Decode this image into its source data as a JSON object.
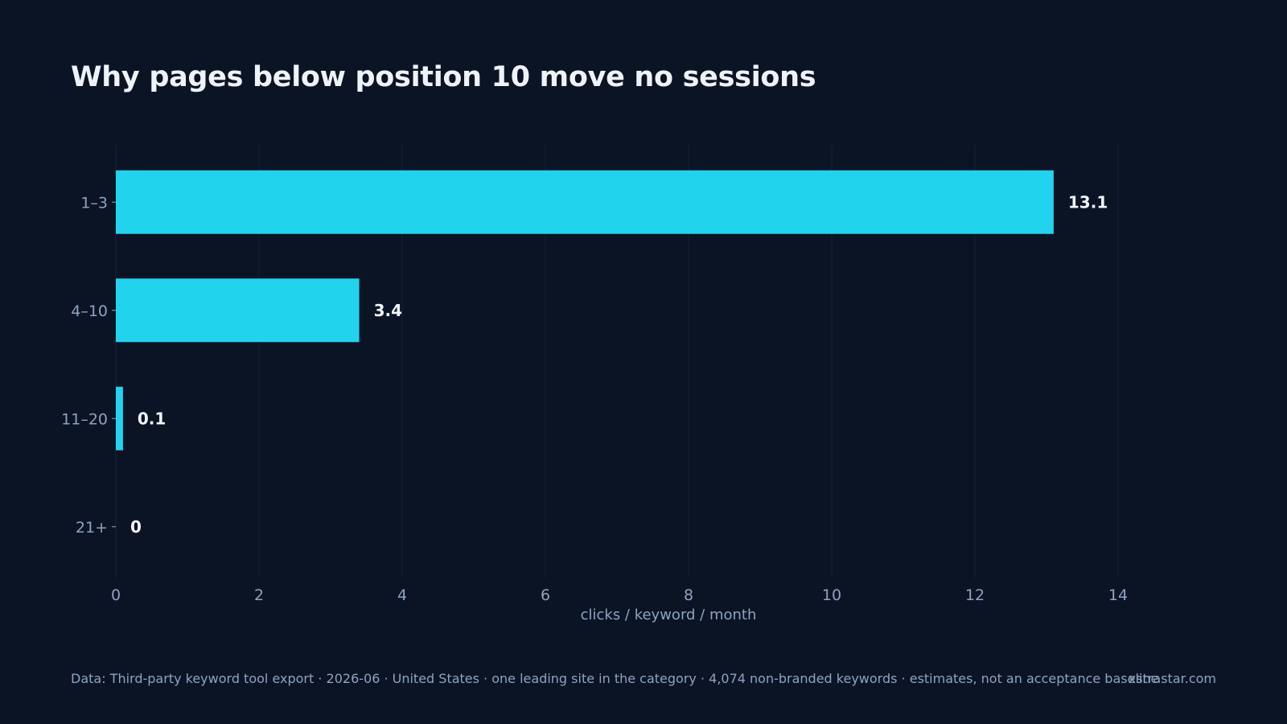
{
  "chart_data": {
    "type": "bar",
    "orientation": "horizontal",
    "title": "Why pages below position 10 move no sessions",
    "xlabel": "clicks / keyword / month",
    "ylabel": "",
    "categories": [
      "1–3",
      "4–10",
      "11–20",
      "21+"
    ],
    "values": [
      13.1,
      3.4,
      0.1,
      0
    ],
    "value_labels": [
      "13.1",
      "3.4",
      "0.1",
      "0"
    ],
    "xlim": [
      0,
      14
    ],
    "xticks": [
      0,
      2,
      4,
      6,
      8,
      10,
      12,
      14
    ],
    "grid": "vertical",
    "bar_color": "#22d3ee"
  },
  "footer": {
    "source": "Data: Third-party keyword tool export · 2026-06 · United States · one leading site in the category · 4,074 non-branded keywords · estimates, not an acceptance baseline",
    "brand": "xstrastar.com"
  },
  "colors": {
    "background": "#0b1425",
    "grid": "#16223a",
    "axis_text": "#8ea3c0",
    "value_text": "#f2f6fc"
  }
}
